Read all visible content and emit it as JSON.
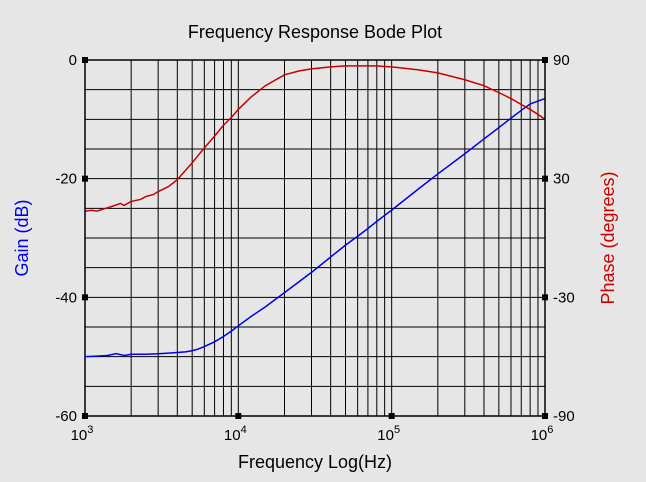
{
  "chart_data": {
    "type": "line",
    "title": "Frequency Response Bode Plot",
    "xlabel": "Frequency Log(Hz)",
    "ylabel_left": "Gain (dB)",
    "ylabel_right": "Phase (degrees)",
    "x_scale": "log",
    "xlim": [
      1000,
      1000000
    ],
    "ylim_left": [
      -60,
      0
    ],
    "ylim_right": [
      -90,
      90
    ],
    "grid": true,
    "x_ticks": [
      {
        "value": 1000,
        "base": "10",
        "exp": "3"
      },
      {
        "value": 10000,
        "base": "10",
        "exp": "4"
      },
      {
        "value": 100000,
        "base": "10",
        "exp": "5"
      },
      {
        "value": 1000000,
        "base": "10",
        "exp": "6"
      }
    ],
    "y_ticks_left": [
      {
        "value": 0,
        "label": "0"
      },
      {
        "value": -20,
        "label": "-20"
      },
      {
        "value": -40,
        "label": "-40"
      },
      {
        "value": -60,
        "label": "-60"
      }
    ],
    "y_ticks_right": [
      {
        "value": 90,
        "label": "90"
      },
      {
        "value": 30,
        "label": "30"
      },
      {
        "value": -30,
        "label": "-30"
      },
      {
        "value": -90,
        "label": "-90"
      }
    ],
    "series": [
      {
        "color": "#0000ee",
        "axis": "left",
        "x": [
          1000,
          1200,
          1400,
          1600,
          1800,
          2000,
          2500,
          3000,
          3500,
          4000,
          4500,
          5000,
          5500,
          6000,
          7000,
          8000,
          9000,
          10000,
          12000,
          15000,
          20000,
          30000,
          40000,
          50000,
          60000,
          70000,
          80000,
          100000,
          150000,
          200000,
          300000,
          400000,
          500000,
          600000,
          700000,
          800000,
          1000000
        ],
        "y": [
          -50.0,
          -49.9,
          -49.8,
          -49.5,
          -49.8,
          -49.6,
          -49.6,
          -49.5,
          -49.4,
          -49.3,
          -49.2,
          -49.0,
          -48.7,
          -48.3,
          -47.5,
          -46.6,
          -45.7,
          -44.8,
          -43.3,
          -41.6,
          -39.2,
          -35.8,
          -33.2,
          -31.2,
          -29.7,
          -28.4,
          -27.2,
          -25.3,
          -21.7,
          -19.2,
          -15.8,
          -13.3,
          -11.4,
          -9.8,
          -8.5,
          -7.4,
          -6.5
        ]
      },
      {
        "color": "#cc0000",
        "axis": "right",
        "x": [
          1000,
          1100,
          1200,
          1300,
          1500,
          1700,
          1800,
          2000,
          2300,
          2500,
          2800,
          3000,
          3500,
          4000,
          4500,
          5000,
          5500,
          6000,
          7000,
          8000,
          9000,
          10000,
          12000,
          15000,
          20000,
          25000,
          30000,
          40000,
          50000,
          60000,
          80000,
          100000,
          150000,
          200000,
          300000,
          400000,
          500000,
          600000,
          700000,
          800000,
          900000,
          1000000
        ],
        "y": [
          13.5,
          14.0,
          13.6,
          14.5,
          16.0,
          17.5,
          16.5,
          18.5,
          19.5,
          21.0,
          22.0,
          23.5,
          26.0,
          29.5,
          34.0,
          38.0,
          42.0,
          45.5,
          51.5,
          57.0,
          61.0,
          65.0,
          71.0,
          77.0,
          82.5,
          84.5,
          85.5,
          86.5,
          87.0,
          87.0,
          87.0,
          86.5,
          85.0,
          83.5,
          80.0,
          77.0,
          73.5,
          70.5,
          67.5,
          65.0,
          62.5,
          60.0
        ]
      }
    ]
  }
}
